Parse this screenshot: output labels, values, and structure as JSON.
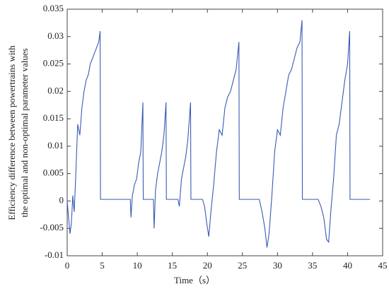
{
  "chart_data": {
    "type": "line",
    "ylabel": [
      "Efficiency difference between powertrains with",
      "the optimal and non-optimal parameter values"
    ],
    "xlabel": "Time（s）",
    "x": [
      0,
      0.2,
      0.4,
      0.6,
      0.8,
      1.0,
      1.2,
      1.5,
      1.8,
      2.1,
      2.4,
      2.7,
      3.0,
      3.3,
      3.6,
      3.9,
      4.2,
      4.5,
      4.7,
      4.75,
      5.0,
      9.0,
      9.1,
      9.3,
      9.6,
      9.9,
      10.2,
      10.5,
      10.8,
      10.85,
      12.3,
      12.4,
      12.6,
      12.9,
      13.2,
      13.5,
      13.8,
      14.1,
      14.15,
      15.8,
      16.0,
      16.3,
      16.6,
      16.9,
      17.2,
      17.6,
      17.65,
      19.3,
      19.6,
      19.9,
      20.2,
      20.5,
      20.9,
      21.3,
      21.7,
      22.1,
      22.5,
      22.9,
      23.3,
      23.7,
      24.1,
      24.5,
      24.55,
      27.4,
      27.8,
      28.2,
      28.5,
      28.8,
      29.2,
      29.6,
      30.0,
      30.4,
      30.8,
      31.2,
      31.6,
      32.0,
      32.4,
      32.8,
      33.2,
      33.5,
      33.55,
      35.8,
      36.2,
      36.6,
      37.0,
      37.3,
      37.6,
      38.0,
      38.4,
      38.8,
      39.2,
      39.6,
      40.0,
      40.3,
      40.35,
      43.2
    ],
    "series": [
      {
        "color": "#3a5bb5",
        "values": [
          0,
          -0.003,
          -0.006,
          -0.004,
          0.001,
          -0.002,
          0.004,
          0.014,
          0.012,
          0.017,
          0.02,
          0.022,
          0.023,
          0.025,
          0.026,
          0.027,
          0.028,
          0.029,
          0.031,
          0.0003,
          0.0003,
          0.0003,
          -0.003,
          0.001,
          0.003,
          0.004,
          0.007,
          0.009,
          0.018,
          0.0003,
          0.0003,
          -0.005,
          0.002,
          0.005,
          0.007,
          0.009,
          0.012,
          0.018,
          0.0003,
          0.0003,
          -0.001,
          0.004,
          0.006,
          0.008,
          0.011,
          0.018,
          0.0003,
          0.0003,
          -0.001,
          -0.004,
          -0.0065,
          -0.002,
          0.003,
          0.009,
          0.013,
          0.012,
          0.017,
          0.019,
          0.02,
          0.022,
          0.024,
          0.029,
          0.0003,
          0.0003,
          -0.002,
          -0.005,
          -0.0085,
          -0.006,
          0.001,
          0.009,
          0.013,
          0.012,
          0.017,
          0.02,
          0.023,
          0.024,
          0.026,
          0.028,
          0.029,
          0.033,
          0.0003,
          0.0003,
          -0.001,
          -0.003,
          -0.007,
          -0.0075,
          -0.002,
          0.004,
          0.012,
          0.014,
          0.018,
          0.022,
          0.025,
          0.031,
          0.0003,
          0.0003
        ]
      }
    ],
    "xlim": [
      0,
      45
    ],
    "xticks": [
      0,
      5,
      10,
      15,
      20,
      25,
      30,
      35,
      40,
      45
    ],
    "ylim": [
      -0.01,
      0.035
    ],
    "yticks": [
      -0.01,
      -0.005,
      0,
      0.005,
      0.01,
      0.015,
      0.02,
      0.025,
      0.03,
      0.035
    ]
  }
}
